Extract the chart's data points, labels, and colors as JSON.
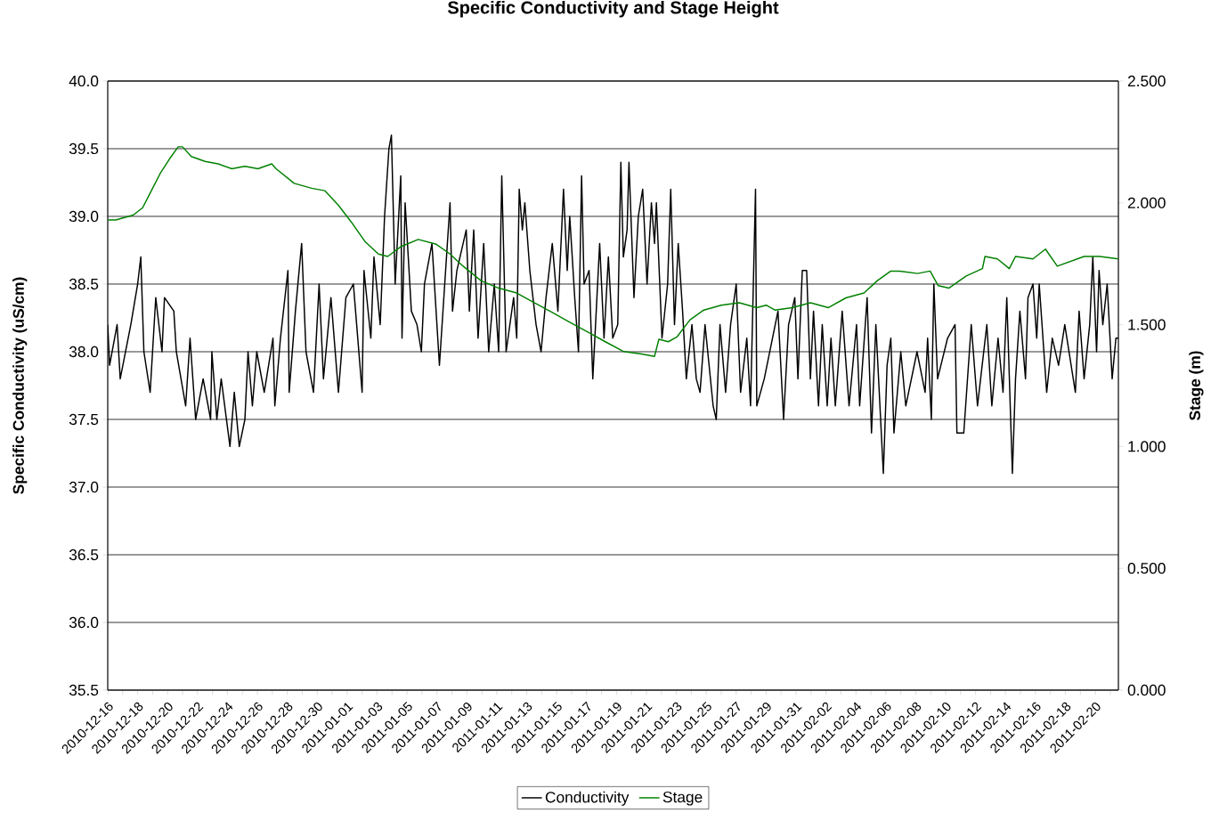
{
  "chart_data": {
    "type": "line",
    "title": "Specific Conductivity and Stage Height",
    "ylabel": "Specific Conductivity (uS/cm)",
    "y2label": "Stage (m)",
    "xlim": [
      "2010-12-16",
      "2011-02-21T13:00"
    ],
    "xticks": [
      "2010-12-16",
      {
        "value": "2010-12-17",
        "label": null
      },
      "2010-12-18",
      {
        "value": "2010-12-19",
        "label": null
      },
      "2010-12-20",
      {
        "value": "2010-12-21",
        "label": null
      },
      "2010-12-22",
      {
        "value": "2010-12-23",
        "label": null
      },
      "2010-12-24",
      {
        "value": "2010-12-25",
        "label": null
      },
      "2010-12-26",
      {
        "value": "2010-12-27",
        "label": null
      },
      "2010-12-28",
      {
        "value": "2010-12-29",
        "label": null
      },
      "2010-12-30",
      {
        "value": "2010-12-31",
        "label": null
      },
      "2011-01-01",
      {
        "value": "2011-01-02",
        "label": null
      },
      "2011-01-03",
      {
        "value": "2011-01-04",
        "label": null
      },
      "2011-01-05",
      {
        "value": "2011-01-06",
        "label": null
      },
      "2011-01-07",
      {
        "value": "2011-01-08",
        "label": null
      },
      "2011-01-09",
      {
        "value": "2011-01-10",
        "label": null
      },
      "2011-01-11",
      {
        "value": "2011-01-12",
        "label": null
      },
      "2011-01-13",
      {
        "value": "2011-01-14",
        "label": null
      },
      "2011-01-15",
      {
        "value": "2011-01-16",
        "label": null
      },
      "2011-01-17",
      {
        "value": "2011-01-18",
        "label": null
      },
      "2011-01-19",
      {
        "value": "2011-01-20",
        "label": null
      },
      "2011-01-21",
      {
        "value": "2011-01-22",
        "label": null
      },
      "2011-01-23",
      {
        "value": "2011-01-24",
        "label": null
      },
      "2011-01-25",
      {
        "value": "2011-01-26",
        "label": null
      },
      "2011-01-27",
      {
        "value": "2011-01-28",
        "label": null
      },
      "2011-01-29",
      {
        "value": "2011-01-30",
        "label": null
      },
      "2011-01-31",
      {
        "value": "2011-02-01",
        "label": null
      },
      "2011-02-02",
      {
        "value": "2011-02-03",
        "label": null
      },
      "2011-02-04",
      {
        "value": "2011-02-05",
        "label": null
      },
      "2011-02-06",
      {
        "value": "2011-02-07",
        "label": null
      },
      "2011-02-08",
      {
        "value": "2011-02-09",
        "label": null
      },
      "2011-02-10",
      {
        "value": "2011-02-11",
        "label": null
      },
      "2011-02-12",
      {
        "value": "2011-02-13",
        "label": null
      },
      "2011-02-14",
      {
        "value": "2011-02-15",
        "label": null
      },
      "2011-02-16",
      {
        "value": "2011-02-17",
        "label": null
      },
      "2011-02-18",
      {
        "value": "2011-02-19",
        "label": null
      },
      "2011-02-20",
      {
        "value": "2011-02-21",
        "label": null
      }
    ],
    "ylim": [
      35.5,
      40
    ],
    "yticks": [
      {
        "value": 35.5,
        "label": "35.5"
      },
      {
        "value": 36,
        "label": "36.0"
      },
      {
        "value": 36.5,
        "label": "36.5"
      },
      {
        "value": 37,
        "label": "37.0"
      },
      {
        "value": 37.5,
        "label": "37.5"
      },
      {
        "value": 38,
        "label": "38.0"
      },
      {
        "value": 38.5,
        "label": "38.5"
      },
      {
        "value": 39,
        "label": "39.0"
      },
      {
        "value": 39.5,
        "label": "39.5"
      },
      {
        "value": 40,
        "label": "40.0"
      }
    ],
    "y2lim": [
      0,
      2.5
    ],
    "y2ticks": [
      {
        "value": 0,
        "label": "0.000"
      },
      {
        "value": 0.5,
        "label": "0.500"
      },
      {
        "value": 1,
        "label": "1.000"
      },
      {
        "value": 1.5,
        "label": "1.500"
      },
      {
        "value": 2,
        "label": "2.000"
      },
      {
        "value": 2.5,
        "label": "2.500"
      }
    ],
    "grid": "y",
    "legend": "bottom",
    "marker": "none",
    "series": [
      {
        "name": "Conductivity",
        "color": "#000000",
        "x": [
          "2010-12-16T00:00",
          "2010-12-16T03:00",
          "2010-12-16T15:00",
          "2010-12-16T20:00",
          "2010-12-17T13:00",
          "2010-12-18T00:00",
          "2010-12-18T05:00",
          "2010-12-18T10:00",
          "2010-12-18T20:00",
          "2010-12-19T05:00",
          "2010-12-19T15:00",
          "2010-12-19T19:00",
          "2010-12-20T10:00",
          "2010-12-20T14:00",
          "2010-12-21T05:00",
          "2010-12-21T12:00",
          "2010-12-21T21:00",
          "2010-12-22T09:00",
          "2010-12-22T21:00",
          "2010-12-22T23:00",
          "2010-12-23T07:00",
          "2010-12-23T14:00",
          "2010-12-24T04:00",
          "2010-12-24T11:00",
          "2010-12-24T19:00",
          "2010-12-25T04:00",
          "2010-12-25T09:00",
          "2010-12-25T16:00",
          "2010-12-25T23:00",
          "2010-12-26T11:00",
          "2010-12-27T01:00",
          "2010-12-27T04:00",
          "2010-12-27T13:00",
          "2010-12-28T01:00",
          "2010-12-28T03:00",
          "2010-12-28T13:00",
          "2010-12-28T23:00",
          "2010-12-29T06:00",
          "2010-12-29T18:00",
          "2010-12-30T03:00",
          "2010-12-30T10:00",
          "2010-12-30T22:00",
          "2010-12-31T10:00",
          "2010-12-31T22:00",
          "2011-01-01T10:00",
          "2011-01-02T00:00",
          "2011-01-02T03:00",
          "2011-01-02T14:00",
          "2011-01-02T19:00",
          "2011-01-03T05:00",
          "2011-01-03T12:00",
          "2011-01-03T19:00",
          "2011-01-03T23:00",
          "2011-01-04T05:00",
          "2011-01-04T14:00",
          "2011-01-04T16:00",
          "2011-01-04T21:00",
          "2011-01-05T07:00",
          "2011-01-05T16:00",
          "2011-01-05T23:00",
          "2011-01-06T04:00",
          "2011-01-06T16:00",
          "2011-01-07T04:00",
          "2011-01-07T21:00",
          "2011-01-08T01:00",
          "2011-01-08T08:00",
          "2011-01-08T23:00",
          "2011-01-09T04:00",
          "2011-01-09T11:00",
          "2011-01-09T18:00",
          "2011-01-10T03:00",
          "2011-01-10T11:00",
          "2011-01-10T20:00",
          "2011-01-11T03:00",
          "2011-01-11T08:00",
          "2011-01-11T15:00",
          "2011-01-12T03:00",
          "2011-01-12T08:00",
          "2011-01-12T12:00",
          "2011-01-12T17:00",
          "2011-01-12T21:00",
          "2011-01-13T05:00",
          "2011-01-13T15:00",
          "2011-01-13T23:00",
          "2011-01-14T07:00",
          "2011-01-14T17:00",
          "2011-01-15T02:00",
          "2011-01-15T11:00",
          "2011-01-15T17:00",
          "2011-01-15T21:00",
          "2011-01-16T05:00",
          "2011-01-16T11:00",
          "2011-01-16T16:00",
          "2011-01-16T20:00",
          "2011-01-17T04:00",
          "2011-01-17T10:00",
          "2011-01-17T21:00",
          "2011-01-18T04:00",
          "2011-01-18T11:00",
          "2011-01-18T18:00",
          "2011-01-19T02:00",
          "2011-01-19T07:00",
          "2011-01-19T11:00",
          "2011-01-19T17:00",
          "2011-01-19T20:00",
          "2011-01-20T04:00",
          "2011-01-20T11:00",
          "2011-01-20T18:00",
          "2011-01-21T01:00",
          "2011-01-21T08:00",
          "2011-01-21T13:00",
          "2011-01-21T16:00",
          "2011-01-22T01:00",
          "2011-01-22T10:00",
          "2011-01-22T15:00",
          "2011-01-22T21:00",
          "2011-01-23T03:00",
          "2011-01-23T10:00",
          "2011-01-23T16:00",
          "2011-01-24T01:00",
          "2011-01-24T08:00",
          "2011-01-24T14:00",
          "2011-01-24T22:00",
          "2011-01-25T11:00",
          "2011-01-25T16:00",
          "2011-01-25T22:00",
          "2011-01-26T07:00",
          "2011-01-26T15:00",
          "2011-01-27T00:00",
          "2011-01-27T07:00",
          "2011-01-27T17:00",
          "2011-01-27T23:00",
          "2011-01-28T07:00",
          "2011-01-28T09:00",
          "2011-01-28T21:00",
          "2011-01-29T19:00",
          "2011-01-30T04:00",
          "2011-01-30T12:00",
          "2011-01-30T22:00",
          "2011-01-31T03:00",
          "2011-01-31T10:00",
          "2011-01-31T17:00",
          "2011-01-31T23:00",
          "2011-02-01T04:00",
          "2011-02-01T12:00",
          "2011-02-01T18:00",
          "2011-02-02T02:00",
          "2011-02-02T08:00",
          "2011-02-02T15:00",
          "2011-02-03T02:00",
          "2011-02-03T13:00",
          "2011-02-04T01:00",
          "2011-02-04T06:00",
          "2011-02-04T18:00",
          "2011-02-05T01:00",
          "2011-02-05T08:00",
          "2011-02-05T20:00",
          "2011-02-06T02:00",
          "2011-02-06T08:00",
          "2011-02-06T13:00",
          "2011-02-07T00:00",
          "2011-02-07T08:00",
          "2011-02-08T02:00",
          "2011-02-08T15:00",
          "2011-02-08T19:00",
          "2011-02-09T01:00",
          "2011-02-09T05:00",
          "2011-02-09T11:00",
          "2011-02-10T03:00",
          "2011-02-10T15:00",
          "2011-02-10T18:00",
          "2011-02-11T05:00",
          "2011-02-11T17:00",
          "2011-02-12T03:00",
          "2011-02-12T18:00",
          "2011-02-13T02:00",
          "2011-02-13T12:00",
          "2011-02-13T20:00",
          "2011-02-14T02:00",
          "2011-02-14T11:00",
          "2011-02-14T16:00",
          "2011-02-14T23:00",
          "2011-02-15T08:00",
          "2011-02-15T12:00",
          "2011-02-15T20:00",
          "2011-02-16T02:00",
          "2011-02-16T06:00",
          "2011-02-16T18:00",
          "2011-02-17T03:00",
          "2011-02-17T13:00",
          "2011-02-17T23:00",
          "2011-02-18T16:00",
          "2011-02-18T22:00",
          "2011-02-19T06:00",
          "2011-02-19T15:00",
          "2011-02-19T20:00",
          "2011-02-20T02:00",
          "2011-02-20T06:00",
          "2011-02-20T12:00",
          "2011-02-20T19:00",
          "2011-02-21T03:00",
          "2011-02-21T09:00",
          "2011-02-21T13:00"
        ],
        "values": [
          38.2,
          37.9,
          38.2,
          37.8,
          38.2,
          38.5,
          38.7,
          38.0,
          37.7,
          38.4,
          38.0,
          38.4,
          38.3,
          38.0,
          37.6,
          38.1,
          37.5,
          37.8,
          37.5,
          38.0,
          37.5,
          37.8,
          37.3,
          37.7,
          37.3,
          37.5,
          38.0,
          37.6,
          38.0,
          37.7,
          38.1,
          37.6,
          38.1,
          38.6,
          37.7,
          38.3,
          38.8,
          38.0,
          37.7,
          38.5,
          37.8,
          38.4,
          37.7,
          38.4,
          38.5,
          37.7,
          38.6,
          38.1,
          38.7,
          38.2,
          39.0,
          39.5,
          39.6,
          38.5,
          39.3,
          38.1,
          39.1,
          38.3,
          38.2,
          38.0,
          38.5,
          38.8,
          37.9,
          39.1,
          38.3,
          38.6,
          38.9,
          38.3,
          38.9,
          38.1,
          38.8,
          38.0,
          38.5,
          38.0,
          39.3,
          38.0,
          38.4,
          38.1,
          39.2,
          38.9,
          39.1,
          38.6,
          38.2,
          38.0,
          38.4,
          38.8,
          38.3,
          39.2,
          38.6,
          39.0,
          38.4,
          38.0,
          39.3,
          38.5,
          38.6,
          37.8,
          38.8,
          38.1,
          38.7,
          38.1,
          38.2,
          39.4,
          38.7,
          38.9,
          39.4,
          38.4,
          39.0,
          39.2,
          38.5,
          39.1,
          38.8,
          39.1,
          38.1,
          38.5,
          39.2,
          38.2,
          38.8,
          38.3,
          37.8,
          38.2,
          37.8,
          37.7,
          38.2,
          37.6,
          37.5,
          38.2,
          37.7,
          38.2,
          38.5,
          37.7,
          38.1,
          37.6,
          39.2,
          37.6,
          37.8,
          38.3,
          37.5,
          38.2,
          38.4,
          37.8,
          38.6,
          38.6,
          37.8,
          38.3,
          37.6,
          38.2,
          37.6,
          38.1,
          37.6,
          38.3,
          37.6,
          38.2,
          37.6,
          38.4,
          37.4,
          38.2,
          37.1,
          37.9,
          38.1,
          37.4,
          38.0,
          37.6,
          38.0,
          37.7,
          38.1,
          37.5,
          38.5,
          37.8,
          38.1,
          38.2,
          37.4,
          37.4,
          38.2,
          37.6,
          38.2,
          37.6,
          38.1,
          37.7,
          38.4,
          37.1,
          37.8,
          38.3,
          37.8,
          38.4,
          38.5,
          38.1,
          38.5,
          37.7,
          38.1,
          37.9,
          38.2,
          37.7,
          38.3,
          37.8,
          38.2,
          38.7,
          38.0,
          38.6,
          38.2,
          38.5,
          37.8,
          38.1,
          38.1
        ]
      },
      {
        "name": "Stage",
        "color": "#008000",
        "axis": "y2",
        "x": [
          "2010-12-16T00:00",
          "2010-12-16T13:00",
          "2010-12-17T03:00",
          "2010-12-17T17:00",
          "2010-12-18T08:00",
          "2010-12-18T22:00",
          "2010-12-19T12:00",
          "2010-12-20T03:00",
          "2010-12-20T17:00",
          "2010-12-21T00:00",
          "2010-12-21T14:00",
          "2010-12-22T12:00",
          "2010-12-23T09:00",
          "2010-12-24T07:00",
          "2010-12-25T04:00",
          "2010-12-26T01:00",
          "2010-12-26T23:00",
          "2010-12-27T06:00",
          "2010-12-28T11:00",
          "2010-12-29T15:00",
          "2010-12-30T12:00",
          "2010-12-31T10:00",
          "2011-01-01T07:00",
          "2011-01-02T05:00",
          "2011-01-03T02:00",
          "2011-01-03T17:00",
          "2011-01-04T14:00",
          "2011-01-05T18:00",
          "2011-01-06T23:00",
          "2011-01-07T21:00",
          "2011-01-08T18:00",
          "2011-01-09T23:00",
          "2011-01-11T03:00",
          "2011-01-12T08:00",
          "2011-01-13T12:00",
          "2011-01-14T17:00",
          "2011-01-15T21:00",
          "2011-01-17T02:00",
          "2011-01-18T06:00",
          "2011-01-19T11:00",
          "2011-01-20T16:00",
          "2011-01-21T13:00",
          "2011-01-21T20:00",
          "2011-01-22T11:00",
          "2011-01-23T01:00",
          "2011-01-23T22:00",
          "2011-01-24T20:00",
          "2011-01-26T00:00",
          "2011-01-27T05:00",
          "2011-01-28T09:00",
          "2011-01-29T00:00",
          "2011-01-29T14:00",
          "2011-01-30T18:00",
          "2011-01-31T23:00",
          "2011-02-02T04:00",
          "2011-02-03T08:00",
          "2011-02-04T13:00",
          "2011-02-05T10:00",
          "2011-02-06T08:00",
          "2011-02-06T22:00",
          "2011-02-08T03:00",
          "2011-02-08T23:00",
          "2011-02-09T12:00",
          "2011-02-10T05:00",
          "2011-02-11T09:00",
          "2011-02-12T11:00",
          "2011-02-12T15:00",
          "2011-02-13T11:00",
          "2011-02-14T06:00",
          "2011-02-14T16:00",
          "2011-02-15T20:00",
          "2011-02-16T16:00",
          "2011-02-17T11:00",
          "2011-02-19T06:00",
          "2011-02-20T07:00",
          "2011-02-21T13:00"
        ],
        "values": [
          1.93,
          1.93,
          1.94,
          1.95,
          1.98,
          2.05,
          2.12,
          2.18,
          2.23,
          2.23,
          2.19,
          2.17,
          2.16,
          2.14,
          2.15,
          2.14,
          2.16,
          2.14,
          2.08,
          2.06,
          2.05,
          1.99,
          1.92,
          1.84,
          1.79,
          1.78,
          1.82,
          1.85,
          1.83,
          1.79,
          1.74,
          1.68,
          1.65,
          1.63,
          1.59,
          1.55,
          1.51,
          1.47,
          1.43,
          1.39,
          1.38,
          1.37,
          1.44,
          1.43,
          1.45,
          1.52,
          1.56,
          1.58,
          1.59,
          1.57,
          1.58,
          1.56,
          1.57,
          1.59,
          1.57,
          1.61,
          1.63,
          1.68,
          1.72,
          1.72,
          1.71,
          1.72,
          1.66,
          1.65,
          1.7,
          1.73,
          1.78,
          1.77,
          1.73,
          1.78,
          1.77,
          1.81,
          1.74,
          1.78,
          1.78,
          1.77
        ]
      }
    ]
  }
}
